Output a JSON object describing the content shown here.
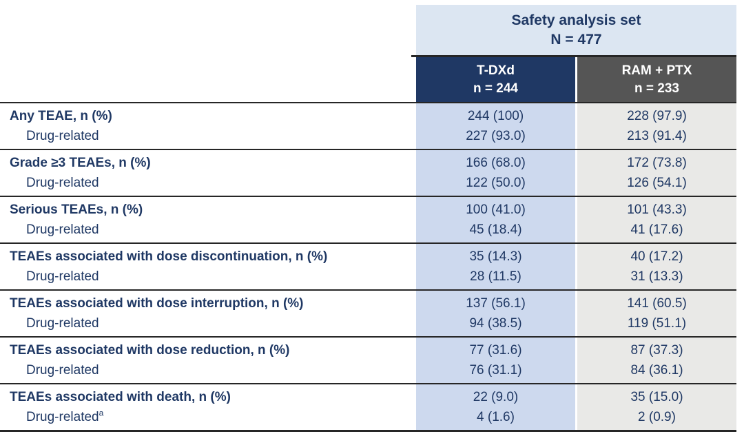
{
  "header": {
    "group_title": "Safety analysis set",
    "group_n": "N = 477",
    "columns": [
      {
        "name": "T-DXd",
        "n": "n = 244"
      },
      {
        "name": "RAM + PTX",
        "n": "n = 233"
      }
    ]
  },
  "rows": [
    {
      "label": "Any TEAE, n (%)",
      "sub_label": "Drug-related",
      "sub_sup": "",
      "tdxd": "244 (100)",
      "tdxd_sub": "227 (93.0)",
      "ram": "228 (97.9)",
      "ram_sub": "213 (91.4)"
    },
    {
      "label": "Grade ≥3 TEAEs, n (%)",
      "sub_label": "Drug-related",
      "sub_sup": "",
      "tdxd": "166 (68.0)",
      "tdxd_sub": "122 (50.0)",
      "ram": "172 (73.8)",
      "ram_sub": "126 (54.1)"
    },
    {
      "label": "Serious TEAEs, n (%)",
      "sub_label": "Drug-related",
      "sub_sup": "",
      "tdxd": "100 (41.0)",
      "tdxd_sub": "45 (18.4)",
      "ram": "101 (43.3)",
      "ram_sub": "41 (17.6)"
    },
    {
      "label": "TEAEs associated with dose discontinuation, n (%)",
      "sub_label": "Drug-related",
      "sub_sup": "",
      "tdxd": "35 (14.3)",
      "tdxd_sub": "28 (11.5)",
      "ram": "40 (17.2)",
      "ram_sub": "31 (13.3)"
    },
    {
      "label": "TEAEs associated with dose interruption, n (%)",
      "sub_label": "Drug-related",
      "sub_sup": "",
      "tdxd": "137 (56.1)",
      "tdxd_sub": "94 (38.5)",
      "ram": "141 (60.5)",
      "ram_sub": "119 (51.1)"
    },
    {
      "label": "TEAEs associated with dose reduction, n (%)",
      "sub_label": "Drug-related",
      "sub_sup": "",
      "tdxd": "77 (31.6)",
      "tdxd_sub": "76 (31.1)",
      "ram": "87 (37.3)",
      "ram_sub": "84 (36.1)"
    },
    {
      "label": "TEAEs associated with death, n (%)",
      "sub_label": "Drug-related",
      "sub_sup": "a",
      "tdxd": "22 (9.0)",
      "tdxd_sub": "4 (1.6)",
      "ram": "35 (15.0)",
      "ram_sub": "2 (0.9)"
    }
  ],
  "colors": {
    "group_header_bg": "#dce6f2",
    "tdxd_header_bg": "#1f3864",
    "ram_header_bg": "#555555",
    "tdxd_column_bg": "#cdd9ee",
    "ram_column_bg": "#e9e9e7",
    "text_navy": "#1f3864",
    "rule": "#262626"
  }
}
